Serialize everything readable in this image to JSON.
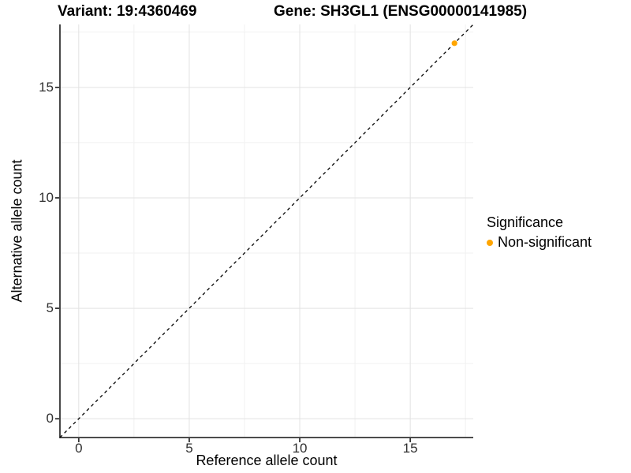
{
  "header": {
    "variant_title": "Variant: 19:4360469",
    "gene_title": "Gene: SH3GL1 (ENSG00000141985)"
  },
  "axes": {
    "x_label": "Reference allele count",
    "y_label": "Alternative allele count",
    "x_ticks": [
      "0",
      "5",
      "10",
      "15"
    ],
    "y_ticks": [
      "0",
      "5",
      "10",
      "15"
    ]
  },
  "legend": {
    "title": "Significance",
    "items": [
      {
        "label": "Non-significant",
        "color": "#FFA500"
      }
    ]
  },
  "colors": {
    "point_orange": "#FFA500",
    "axis_line": "#333333",
    "tick_label": "#303030",
    "grid_major": "#E2E2E2",
    "grid_minor": "#F1F1F1",
    "identity_line": "#000000",
    "background": "#FFFFFF"
  },
  "chart_data": {
    "type": "scatter",
    "title": "Variant: 19:4360469  |  Gene: SH3GL1 (ENSG00000141985)",
    "xlabel": "Reference allele count",
    "ylabel": "Alternative allele count",
    "xlim": [
      -0.85,
      17.85
    ],
    "ylim": [
      -0.85,
      17.85
    ],
    "x_major_ticks": [
      0,
      5,
      10,
      15
    ],
    "y_major_ticks": [
      0,
      5,
      10,
      15
    ],
    "x_minor_ticks": [
      2.5,
      7.5,
      12.5,
      17.5
    ],
    "y_minor_ticks": [
      2.5,
      7.5,
      12.5,
      17.5
    ],
    "grid": "major+minor",
    "legend_position": "right",
    "legend_title": "Significance",
    "series": [
      {
        "name": "Non-significant",
        "color": "#FFA500",
        "points": [
          {
            "x": 17,
            "y": 17
          }
        ]
      }
    ],
    "reference_line": {
      "type": "identity y=x",
      "from": -0.85,
      "to": 17.85,
      "style": "dashed",
      "color": "#000000"
    }
  }
}
